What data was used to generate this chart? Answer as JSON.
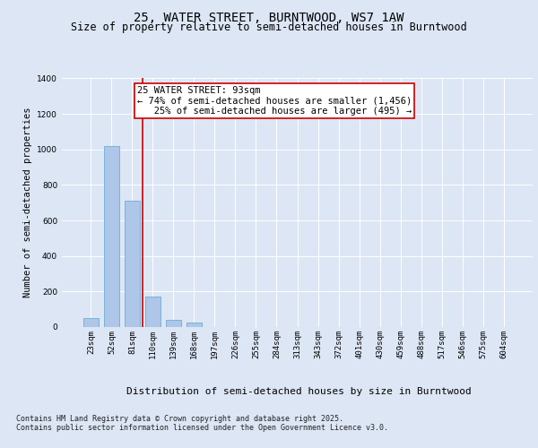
{
  "title": "25, WATER STREET, BURNTWOOD, WS7 1AW",
  "subtitle": "Size of property relative to semi-detached houses in Burntwood",
  "xlabel": "Distribution of semi-detached houses by size in Burntwood",
  "ylabel": "Number of semi-detached properties",
  "categories": [
    "23sqm",
    "52sqm",
    "81sqm",
    "110sqm",
    "139sqm",
    "168sqm",
    "197sqm",
    "226sqm",
    "255sqm",
    "284sqm",
    "313sqm",
    "343sqm",
    "372sqm",
    "401sqm",
    "430sqm",
    "459sqm",
    "488sqm",
    "517sqm",
    "546sqm",
    "575sqm",
    "604sqm"
  ],
  "values": [
    50,
    1020,
    710,
    170,
    40,
    25,
    0,
    0,
    0,
    0,
    0,
    0,
    0,
    0,
    0,
    0,
    0,
    0,
    0,
    0,
    0
  ],
  "bar_color": "#aec6e8",
  "bar_edge_color": "#6baed6",
  "bar_width": 0.75,
  "ylim": [
    0,
    1400
  ],
  "yticks": [
    0,
    200,
    400,
    600,
    800,
    1000,
    1200,
    1400
  ],
  "vline_x": 2.5,
  "vline_color": "#cc0000",
  "annotation_text": "25 WATER STREET: 93sqm\n← 74% of semi-detached houses are smaller (1,456)\n   25% of semi-detached houses are larger (495) →",
  "annotation_box_facecolor": "#ffffff",
  "annotation_box_edgecolor": "#cc0000",
  "footer_text": "Contains HM Land Registry data © Crown copyright and database right 2025.\nContains public sector information licensed under the Open Government Licence v3.0.",
  "background_color": "#dce6f5",
  "plot_background_color": "#dce6f5",
  "title_fontsize": 10,
  "subtitle_fontsize": 8.5,
  "xlabel_fontsize": 8,
  "ylabel_fontsize": 7.5,
  "tick_fontsize": 6.5,
  "annotation_fontsize": 7.5,
  "footer_fontsize": 6
}
